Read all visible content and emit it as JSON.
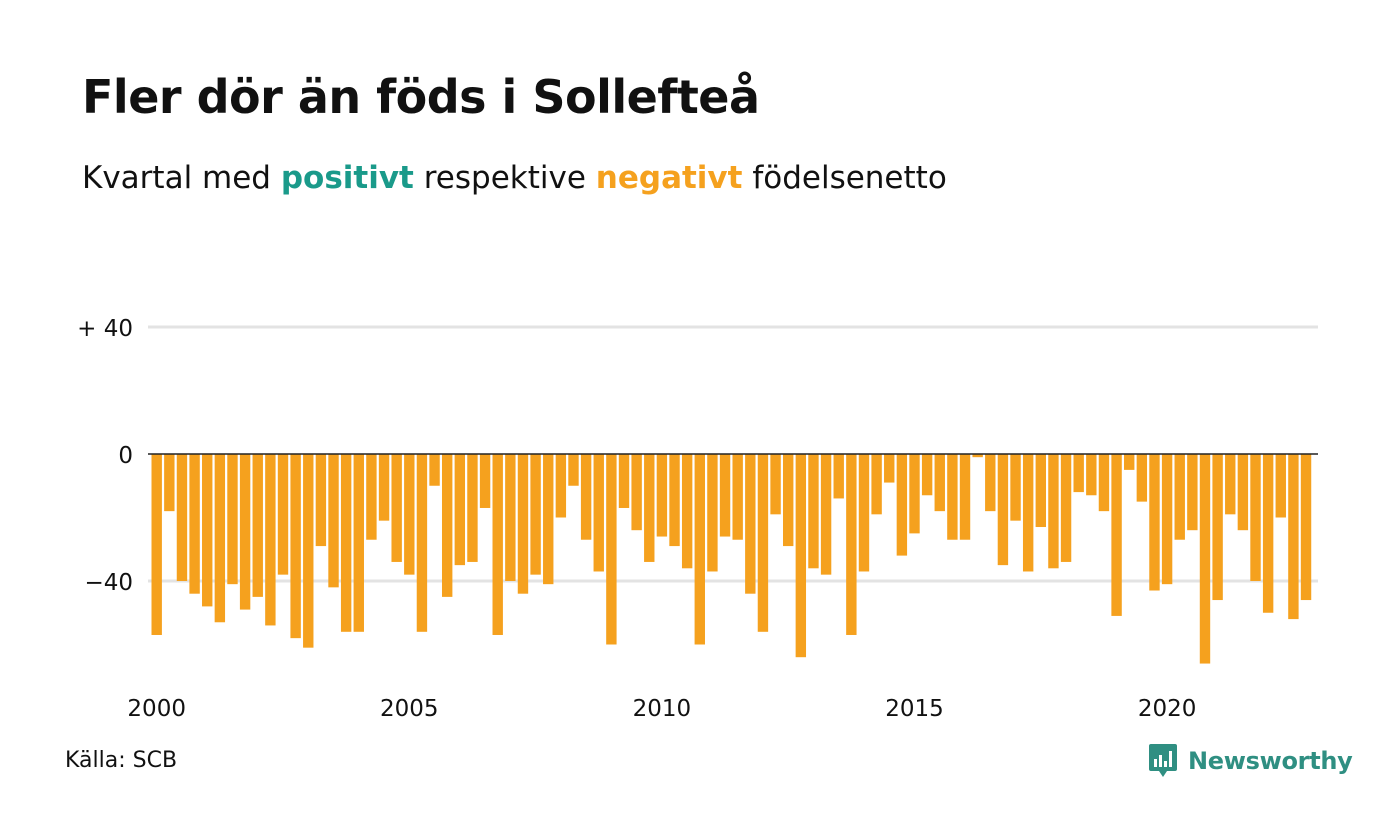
{
  "title": "Fler dör än föds i Sollefteå",
  "subtitle": {
    "prefix": "Kvartal med ",
    "positive": "positivt",
    "middle": " respektive ",
    "negative": "negativt",
    "suffix": " födelsenetto"
  },
  "source": "Källa: SCB",
  "brand": {
    "name": "Newsworthy",
    "icon": "newsworthy-logo-icon"
  },
  "colors": {
    "positive": "#1a9a8a",
    "negative": "#f5a11e",
    "grid": "#e3e3e3",
    "zero_line": "#222222",
    "text": "#111111",
    "brand": "#2f8f82"
  },
  "chart_data": {
    "type": "bar",
    "x_start": "2000 Q1",
    "ylim": [
      -72,
      54
    ],
    "y_ticks": [
      {
        "value": 40,
        "label": "+ 40",
        "grid": true
      },
      {
        "value": 0,
        "label": "0",
        "grid": false
      },
      {
        "value": -40,
        "label": "−40",
        "grid": true
      }
    ],
    "x_ticks": [
      "2000",
      "2005",
      "2010",
      "2015",
      "2020"
    ],
    "xlabel": "",
    "ylabel": "",
    "series": [
      {
        "values": [
          -57,
          -18,
          -40,
          -44,
          -48,
          -53,
          -41,
          -49,
          -45,
          -54,
          -38,
          -58,
          -61,
          -29,
          -42,
          -56,
          -56,
          -27,
          -21,
          -34,
          -38,
          -56,
          -10,
          -45,
          -35,
          -34,
          -17,
          -57,
          -40,
          -44,
          -38,
          -41,
          -20,
          -10,
          -27,
          -37,
          -60,
          -17,
          -24,
          -34,
          -26,
          -29,
          -36,
          -60,
          -37,
          -26,
          -27,
          -44,
          -56,
          -19,
          -29,
          -64,
          -36,
          -38,
          -14,
          -57,
          -37,
          -19,
          -9,
          -32,
          -25,
          -13,
          -18,
          -27,
          -27,
          -1,
          -18,
          -35,
          -21,
          -37,
          -23,
          -36,
          -34,
          -12,
          -13,
          -18,
          -51,
          -5,
          -15,
          -43,
          -41,
          -27,
          -24,
          -66,
          -46,
          -19,
          -24,
          -40,
          -50,
          -20,
          -52,
          -46
        ]
      }
    ]
  }
}
